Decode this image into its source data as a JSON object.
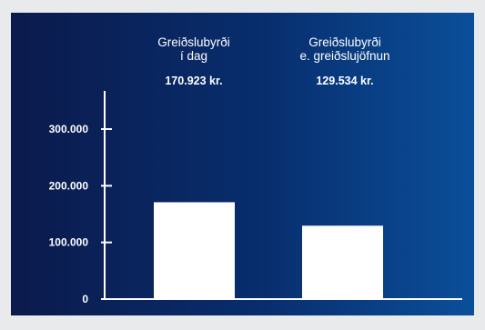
{
  "chart_data": {
    "type": "bar",
    "categories": [
      "Greiðslubyrði\ní dag",
      "Greiðslubyrði\ne. greiðslujöfnun"
    ],
    "values": [
      170923,
      129534
    ],
    "value_labels": [
      "170.923 kr.",
      "129.534 kr."
    ],
    "title": "",
    "xlabel": "",
    "ylabel": "",
    "ylim": [
      0,
      300000
    ],
    "y_ticks": [
      0,
      100000,
      200000,
      300000
    ],
    "y_tick_labels": [
      "0",
      "100.000",
      "200.000",
      "300.000"
    ],
    "grid": false,
    "legend": "none"
  },
  "colors": {
    "bar": "#ffffff",
    "axis": "#ffffff",
    "background_left": "#0b1a4c",
    "background_right": "#0a4f9a"
  }
}
